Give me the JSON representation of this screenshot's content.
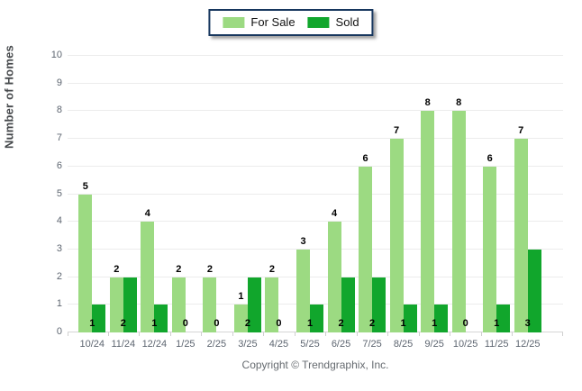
{
  "legend": {
    "items": [
      {
        "label": "For Sale",
        "color": "#9cda82"
      },
      {
        "label": "Sold",
        "color": "#11a62c"
      }
    ]
  },
  "footer": {
    "text": "Copyright © Trendgraphix, Inc."
  },
  "colors": {
    "for_sale": "#9cda82",
    "sold": "#11a62c",
    "legend_border": "#17375e",
    "gridline": "#ececec",
    "baseline": "#d6d6d6",
    "axis_text": "#5d6570",
    "value_label": "#000000"
  },
  "chart_data": {
    "type": "bar",
    "categories": [
      "10/24",
      "11/24",
      "12/24",
      "1/25",
      "2/25",
      "3/25",
      "4/25",
      "5/25",
      "6/25",
      "7/25",
      "8/25",
      "9/25",
      "10/25",
      "11/25",
      "12/25"
    ],
    "series": [
      {
        "name": "For Sale",
        "values": [
          5,
          2,
          4,
          2,
          2,
          1,
          2,
          3,
          4,
          6,
          7,
          8,
          8,
          6,
          7
        ],
        "color": "#9cda82"
      },
      {
        "name": "Sold",
        "values": [
          1,
          2,
          1,
          0,
          0,
          2,
          0,
          1,
          2,
          2,
          1,
          1,
          0,
          1,
          3
        ],
        "color": "#11a62c"
      }
    ],
    "title": "",
    "xlabel": "",
    "ylabel": "Number of Homes",
    "ylim": [
      0,
      10
    ],
    "yticks": [
      0,
      1,
      2,
      3,
      4,
      5,
      6,
      7,
      8,
      9,
      10
    ],
    "grid": true,
    "legend_position": "top-center",
    "value_labels": true
  }
}
